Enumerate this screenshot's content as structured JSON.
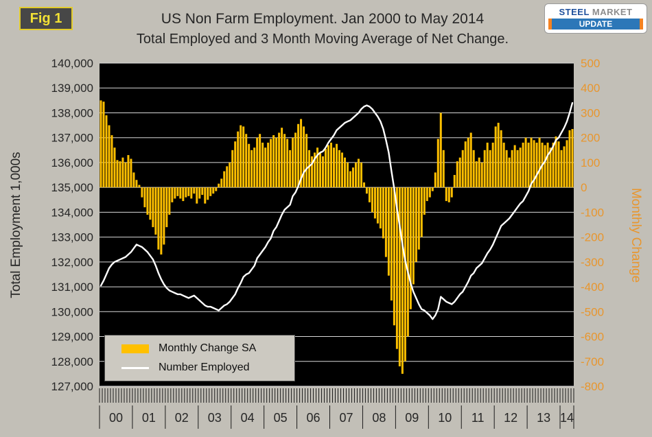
{
  "fig_label": "Fig 1",
  "title": {
    "line1": "US Non Farm Employment. Jan 2000 to May 2014",
    "line2": "Total Employed and 3 Month Moving Average of Net Change."
  },
  "logo": {
    "word1": "STEEL",
    "word2": "MARKET",
    "word3": "UPDATE"
  },
  "colors": {
    "bar": "#FFC000",
    "line": "#FFFFFF",
    "right_axis_text": "#E8962E",
    "left_axis_text": "#262626",
    "plot_bg": "#000000",
    "page_bg": "#C2BFB7",
    "grid": "#D9D9D9"
  },
  "left_axis": {
    "title": "Total Employment 1,000s",
    "max": 140000,
    "min": 127000,
    "step": 1000,
    "ticks": [
      "140,000",
      "139,000",
      "138,000",
      "137,000",
      "136,000",
      "135,000",
      "134,000",
      "133,000",
      "132,000",
      "131,000",
      "130,000",
      "129,000",
      "128,000",
      "127,000"
    ]
  },
  "right_axis": {
    "title": "Monthly Change",
    "max": 500,
    "min": -800,
    "step": 100,
    "ticks": [
      "500",
      "400",
      "300",
      "200",
      "100",
      "0",
      "-100",
      "-200",
      "-300",
      "-400",
      "-500",
      "-600",
      "-700",
      "-800"
    ]
  },
  "x_axis": {
    "years": [
      "00",
      "01",
      "02",
      "03",
      "04",
      "05",
      "06",
      "07",
      "08",
      "09",
      "10",
      "11",
      "12",
      "13",
      "14"
    ]
  },
  "legend": {
    "items": [
      {
        "label": "Monthly Change SA"
      },
      {
        "label": "Number Employed"
      }
    ]
  },
  "chart_data": {
    "type": "combo",
    "x_range": "Jan 2000 to May 2014, monthly",
    "months": 173,
    "left_ylim": [
      127000,
      140000
    ],
    "right_ylim": [
      -800,
      500
    ],
    "series": [
      {
        "name": "Monthly Change SA",
        "type": "bar",
        "axis": "right",
        "color": "#FFC000",
        "values": [
          350,
          345,
          290,
          250,
          210,
          160,
          110,
          105,
          120,
          100,
          130,
          115,
          60,
          30,
          10,
          -40,
          -80,
          -110,
          -130,
          -160,
          -190,
          -250,
          -270,
          -230,
          -160,
          -110,
          -60,
          -45,
          -35,
          -45,
          -55,
          -40,
          -35,
          -45,
          -25,
          -65,
          -45,
          -30,
          -65,
          -50,
          -35,
          -25,
          -15,
          15,
          35,
          65,
          85,
          100,
          150,
          185,
          225,
          250,
          245,
          215,
          175,
          150,
          160,
          200,
          215,
          180,
          160,
          180,
          195,
          210,
          200,
          220,
          240,
          215,
          195,
          150,
          200,
          220,
          255,
          275,
          245,
          215,
          150,
          125,
          140,
          160,
          140,
          125,
          155,
          170,
          180,
          160,
          175,
          150,
          140,
          120,
          100,
          65,
          80,
          100,
          115,
          100,
          20,
          -25,
          -60,
          -100,
          -125,
          -145,
          -165,
          -205,
          -280,
          -355,
          -455,
          -555,
          -650,
          -720,
          -750,
          -700,
          -600,
          -490,
          -390,
          -300,
          -250,
          -200,
          -110,
          -55,
          -40,
          -15,
          60,
          195,
          300,
          150,
          -55,
          -60,
          -40,
          50,
          105,
          120,
          150,
          185,
          200,
          220,
          150,
          105,
          120,
          100,
          150,
          180,
          150,
          180,
          245,
          260,
          230,
          180,
          150,
          120,
          150,
          170,
          150,
          160,
          180,
          200,
          180,
          200,
          190,
          180,
          200,
          180,
          170,
          180,
          160,
          180,
          205,
          185,
          150,
          165,
          190,
          230,
          235
        ]
      },
      {
        "name": "Number Employed",
        "type": "line",
        "axis": "left",
        "color": "#FFFFFF",
        "values": [
          131050,
          131250,
          131500,
          131750,
          131900,
          132000,
          132050,
          132100,
          132150,
          132200,
          132300,
          132400,
          132550,
          132700,
          132650,
          132600,
          132500,
          132400,
          132250,
          132100,
          131850,
          131550,
          131300,
          131100,
          130950,
          130850,
          130800,
          130750,
          130700,
          130700,
          130650,
          130600,
          130550,
          130600,
          130650,
          130550,
          130450,
          130350,
          130250,
          130200,
          130200,
          130150,
          130100,
          130050,
          130150,
          130250,
          130300,
          130400,
          130550,
          130700,
          130950,
          131150,
          131400,
          131500,
          131550,
          131700,
          131850,
          132150,
          132300,
          132450,
          132600,
          132800,
          132950,
          133250,
          133400,
          133650,
          133900,
          134100,
          134200,
          134300,
          134650,
          134800,
          135050,
          135350,
          135600,
          135750,
          135850,
          135950,
          136150,
          136300,
          136400,
          136450,
          136600,
          136800,
          136950,
          137100,
          137300,
          137400,
          137500,
          137600,
          137650,
          137700,
          137800,
          137900,
          138000,
          138150,
          138250,
          138300,
          138250,
          138150,
          138000,
          137850,
          137650,
          137350,
          136900,
          136400,
          135650,
          134950,
          134150,
          133450,
          132700,
          132050,
          131600,
          131150,
          130800,
          130550,
          130300,
          130100,
          130050,
          129950,
          129850,
          129700,
          129850,
          130100,
          130600,
          130500,
          130400,
          130350,
          130300,
          130400,
          130550,
          130700,
          130800,
          131000,
          131200,
          131450,
          131550,
          131750,
          131850,
          131950,
          132150,
          132350,
          132500,
          132700,
          132950,
          133200,
          133450,
          133550,
          133650,
          133750,
          133900,
          134050,
          134200,
          134350,
          134450,
          134650,
          134850,
          135150,
          135300,
          135500,
          135700,
          135900,
          136050,
          136300,
          136450,
          136650,
          136900,
          137000,
          137200,
          137400,
          137650,
          138000,
          138400
        ]
      }
    ]
  }
}
